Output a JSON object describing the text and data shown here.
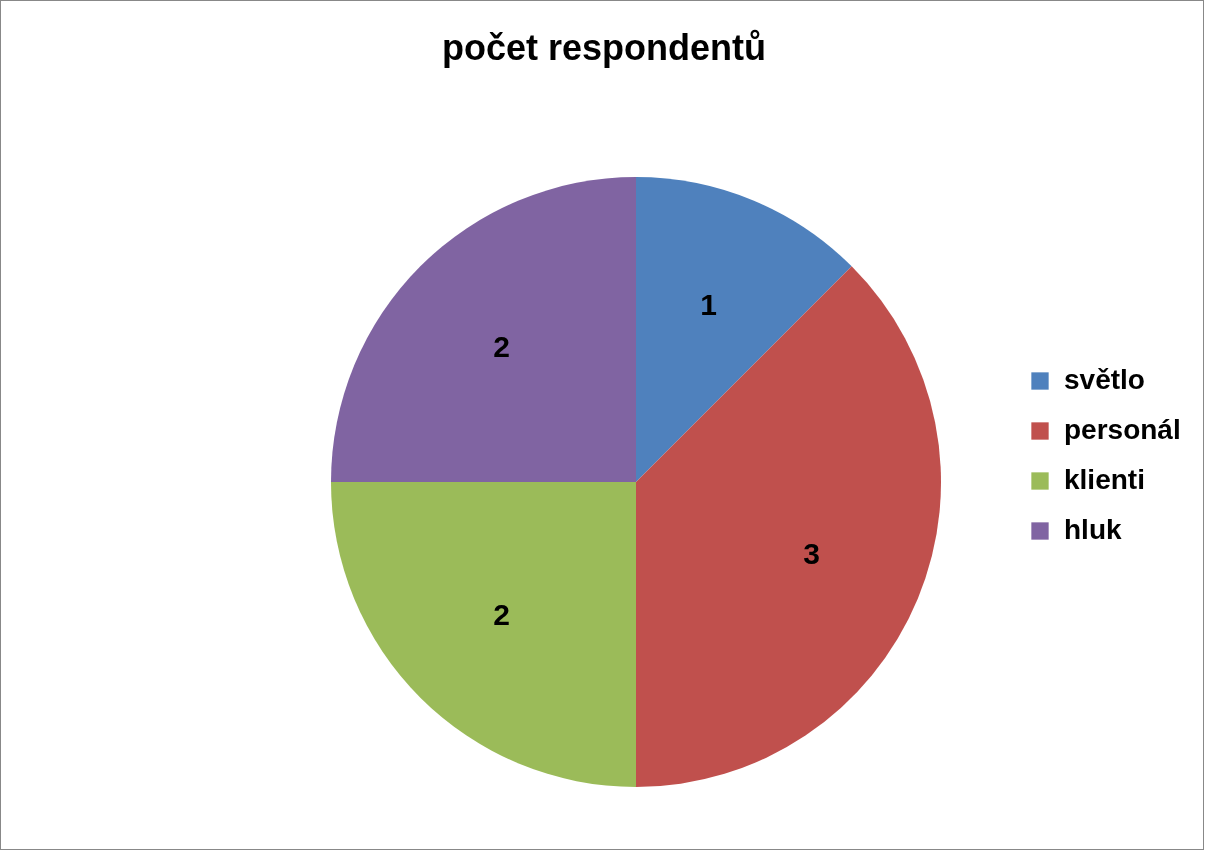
{
  "chart_data": {
    "type": "pie",
    "title": "počet respondentů",
    "categories": [
      "světlo",
      "personál",
      "klienti",
      "hluk"
    ],
    "values": [
      1,
      3,
      2,
      2
    ],
    "colors": [
      "#4f81bd",
      "#c0504d",
      "#9bbb59",
      "#8064a2"
    ],
    "data_labels": true,
    "legend": "right"
  }
}
